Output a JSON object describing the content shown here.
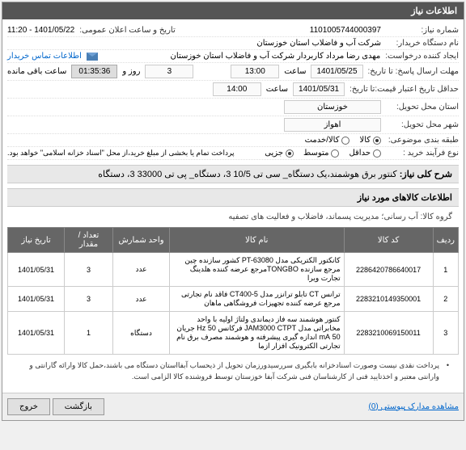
{
  "panel_title": "اطلاعات نیاز",
  "fields": {
    "need_number_label": "شماره نیاز:",
    "need_number": "1101005744000397",
    "announce_label": "تاریخ و ساعت اعلان عمومی:",
    "announce_value": "1401/05/22 - 11:20",
    "buyer_label": "نام دستگاه خریدار:",
    "buyer_value": "شرکت آب و فاضلاب استان خوزستان",
    "requester_label": "ایجاد کننده درخواست:",
    "requester_value": "مهدی رضا مرداد کاربردار شرکت آب و فاضلاب استان خوزستان",
    "contact_label": "اطلاعات تماس خریدار",
    "deadline_label": "مهلت ارسال پاسخ: تا تاریخ:",
    "deadline_date": "1401/05/25",
    "hour_label": "ساعت",
    "deadline_hour": "13:00",
    "days_count": "3",
    "days_and": "روز و",
    "timer": "01:35:36",
    "remain_label": "ساعت باقی مانده",
    "min_validity_label": "حداقل تاریخ اعتبار قیمت:تا تاریخ:",
    "min_validity_date": "1401/05/31",
    "min_validity_hour": "14:00",
    "province_label": "استان محل تحویل:",
    "province_value": "خوزستان",
    "city_label": "شهر محل تحویل:",
    "city_value": "اهواز",
    "category_label": "طبقه بندی موضوعی:",
    "cat_goods": "کالا",
    "cat_service": "کالا/خدمت",
    "process_label": "نوع فرآیند خرید :",
    "proc_min": "حداقل",
    "proc_mid": "متوسط",
    "proc_part": "جزیی",
    "payment_note": "پرداخت تمام یا بخشی از مبلغ خرید،از محل \"اسناد خزانه اسلامی\" خواهد بود."
  },
  "need_title_label": "شرح کلی نیاز:",
  "need_title": "کنتور برق هوشمند،یک دستگاه_ سی تی 10/5 3، دستگاه_ پی تی 33000 3، دستگاه",
  "items_header": "اطلاعات کالاهای مورد نیاز",
  "group_label": "گروه کالا:",
  "group_value": "آب رسانی؛ مدیریت پسماند، فاضلاب و فعالیت های تصفیه",
  "columns": {
    "row": "ردیف",
    "code": "کد کالا",
    "name": "نام کالا",
    "unit": "واحد شمارش",
    "qty": "تعداد / مقدار",
    "date": "تاریخ نیاز"
  },
  "rows": [
    {
      "n": "1",
      "code": "2286420786640017",
      "name": "کانکتور الکتریکی مدل PT-63080 کشور سازنده چین مرجع سازنده TONGBOمرجع عرضه کننده هلدینگ تجارت ویرا",
      "unit": "عدد",
      "qty": "3",
      "date": "1401/05/31"
    },
    {
      "n": "2",
      "code": "2283210149350001",
      "name": "ترانس CT تابلو ترانزر مدل CT400-5 فاقد نام تجارتی مرجع عرضه کننده تجهیزات فروشگاهی ماهان",
      "unit": "عدد",
      "qty": "3",
      "date": "1401/05/31"
    },
    {
      "n": "3",
      "code": "2283210069150011",
      "name": "کنتور هوشمند سه فاز دیماندی ولتاژ اولیه با واحد مخابراتی مدل JAM3000 CTPT فرکانس 50 Hz جریان 50 mA اندازه گیری پیشرفته و هوشمند مصرف برق نام تجارتی الکترونیک افزار ازما",
      "unit": "دستگاه",
      "qty": "1",
      "date": "1401/05/31"
    }
  ],
  "notes": [
    "پرداخت نقدی نیست وصورت اسنادخزانه بابگیری سررسیدورزمان تحویل از ذیحساب آبفااستان دستگاه می باشند،حمل کالا وارائه گارانتی و وارانتی معتبر و اخذتایید فنی از کارشناسان فنی شرکت آبفا خوزستان توسط فروشنده کالا الزامی است."
  ],
  "attachments_link": "مشاهده مدارک پیوستی (0)",
  "btn_back": "بازگشت",
  "btn_exit": "خروج"
}
